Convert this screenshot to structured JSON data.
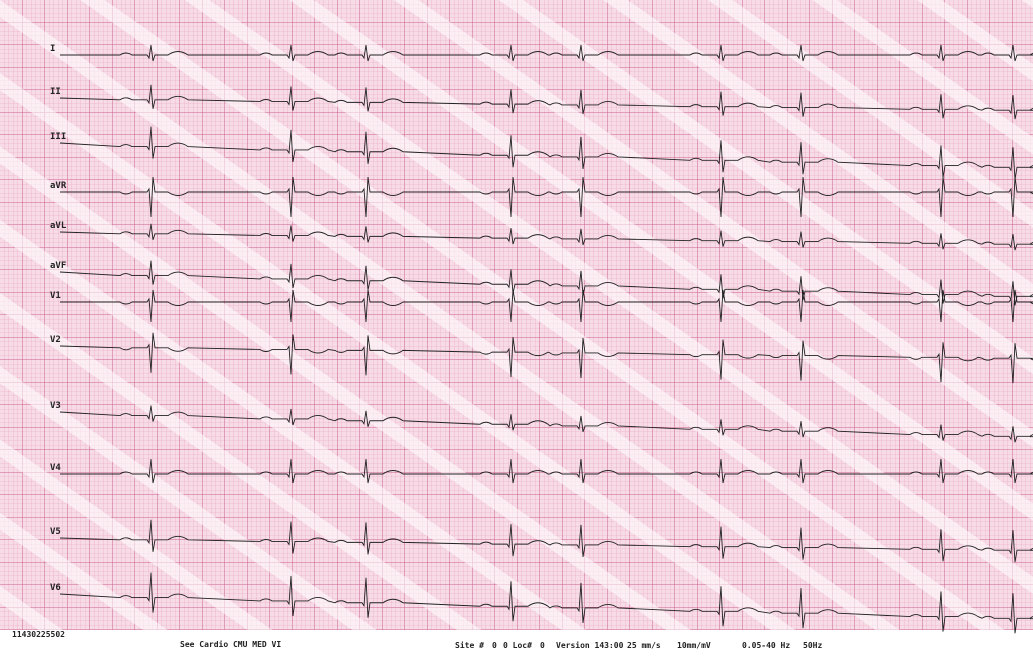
{
  "leads": [
    "I",
    "II",
    "III",
    "aVR",
    "aVL",
    "aVF",
    "V1",
    "V2",
    "V3",
    "V4",
    "V5",
    "V6"
  ],
  "footer": {
    "id": "11430225502",
    "site": "See Cardio CMU MED VI",
    "site_no": "Site #",
    "site_val": "0",
    "loc": "0 Loc#",
    "loc_val": "0",
    "version": "Version 143:00",
    "speed": "25 mm/s",
    "gain": "10mm/mV",
    "filter": "0.05-40 Hz",
    "mains": "50Hz"
  }
}
